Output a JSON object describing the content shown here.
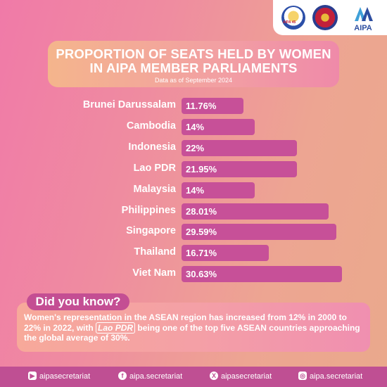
{
  "header": {
    "logos": [
      {
        "name": "aipa-45-logo",
        "text": "AIPA 45"
      },
      {
        "name": "lao-national-assembly-emblem"
      },
      {
        "name": "aipa-logo",
        "text": "AIPA"
      }
    ]
  },
  "chart_data": {
    "type": "bar",
    "orientation": "horizontal",
    "title": "PROPORTION OF SEATS HELD BY WOMEN IN AIPA MEMBER PARLIAMENTS",
    "subtitle": "Data as of September 2024",
    "categories": [
      "Brunei Darussalam",
      "Cambodia",
      "Indonesia",
      "Lao PDR",
      "Malaysia",
      "Philippines",
      "Singapore",
      "Thailand",
      "Viet Nam"
    ],
    "values": [
      11.76,
      14,
      22,
      21.95,
      14,
      28.01,
      29.59,
      16.71,
      30.63
    ],
    "value_labels": [
      "11.76%",
      "14%",
      "22%",
      "21.95%",
      "14%",
      "28.01%",
      "29.59%",
      "16.71%",
      "30.63%"
    ],
    "bar_color": "#c75098",
    "grid": false,
    "legend": "none"
  },
  "did_you_know": {
    "heading": "Did you know?",
    "text_before": "Women's representation in the ASEAN region has increased from 12% in 2000 to 22% in 2022, with ",
    "highlight": "Lao PDR",
    "text_after": " being one of the top five ASEAN countries approaching the global average of 30%."
  },
  "footer": {
    "socials": [
      {
        "icon": "youtube-icon",
        "handle": "aipasecretariat"
      },
      {
        "icon": "facebook-icon",
        "handle": "aipa.secretariat"
      },
      {
        "icon": "x-icon",
        "handle": "aipasecretariat"
      },
      {
        "icon": "instagram-icon",
        "handle": "aipa.secretariat"
      }
    ]
  },
  "colors": {
    "accent": "#c75098",
    "footer": "#bf4f93"
  }
}
